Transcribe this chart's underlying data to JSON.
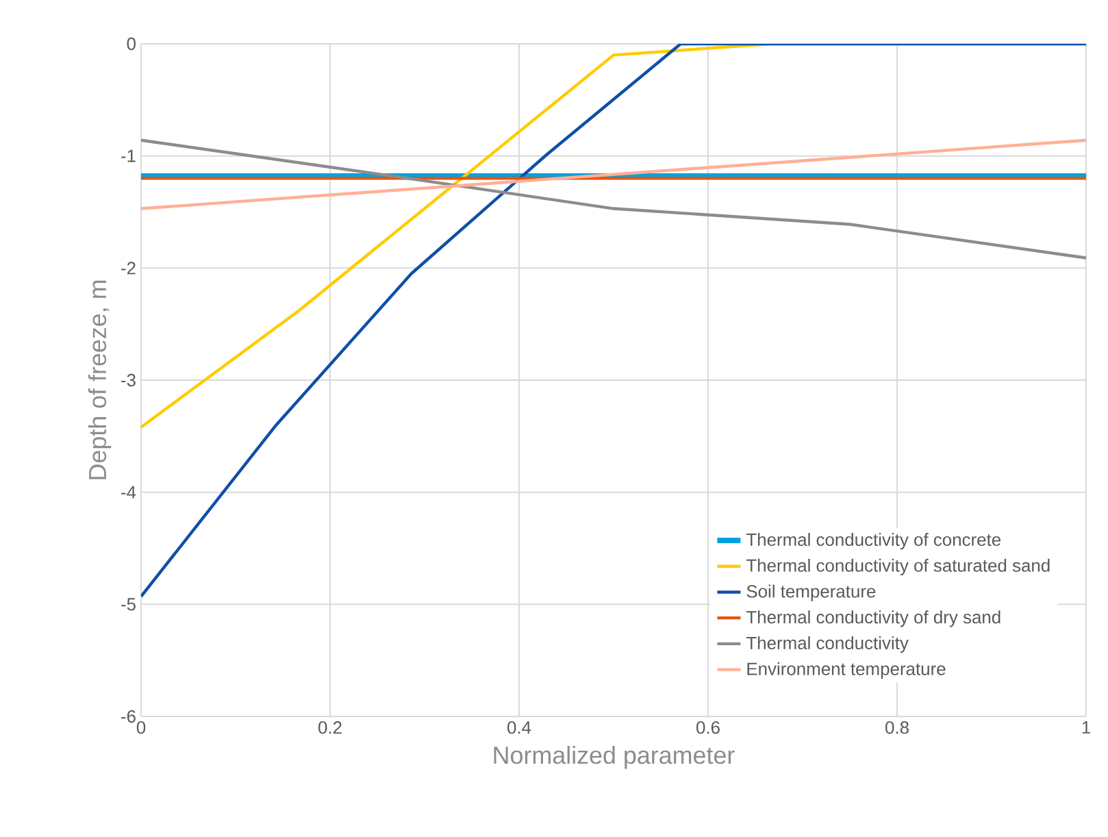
{
  "chart_data": {
    "type": "line",
    "xlabel": "Normalized parameter",
    "ylabel": "Depth of freeze, m",
    "xlim": [
      0,
      1
    ],
    "ylim": [
      -6,
      0
    ],
    "xticks": [
      0,
      0.2,
      0.4,
      0.6,
      0.8,
      1
    ],
    "yticks": [
      -6,
      -5,
      -4,
      -3,
      -2,
      -1,
      0
    ],
    "grid": true,
    "legend": "bottom right",
    "marker": "none",
    "line_style": "solid",
    "series": [
      {
        "name": "Thermal conductivity of concrete",
        "color": "#00a2e0",
        "x": [
          0,
          1
        ],
        "values": [
          -1.18,
          -1.18
        ]
      },
      {
        "name": "Thermal conductivity of saturated sand",
        "color": "#ffcc00",
        "x": [
          0,
          0.167,
          0.5,
          0.667,
          1
        ],
        "values": [
          -3.42,
          -2.38,
          -0.1,
          0,
          0
        ]
      },
      {
        "name": "Soil temperature",
        "color": "#0f4fa8",
        "x": [
          0,
          0.143,
          0.286,
          0.429,
          0.571,
          1
        ],
        "values": [
          -4.93,
          -3.4,
          -2.05,
          -0.99,
          0,
          0
        ]
      },
      {
        "name": "Thermal conductivity of dry sand",
        "color": "#e8540c",
        "x": [
          0,
          1
        ],
        "values": [
          -1.2,
          -1.2
        ]
      },
      {
        "name": "Thermal conductivity",
        "color": "#8c8c8c",
        "x": [
          0,
          0.25,
          0.5,
          0.75,
          1
        ],
        "values": [
          -0.86,
          -1.16,
          -1.47,
          -1.61,
          -1.91
        ]
      },
      {
        "name": "Environment temperature",
        "color": "#ffb095",
        "x": [
          0,
          1
        ],
        "values": [
          -1.47,
          -0.86
        ]
      }
    ]
  }
}
